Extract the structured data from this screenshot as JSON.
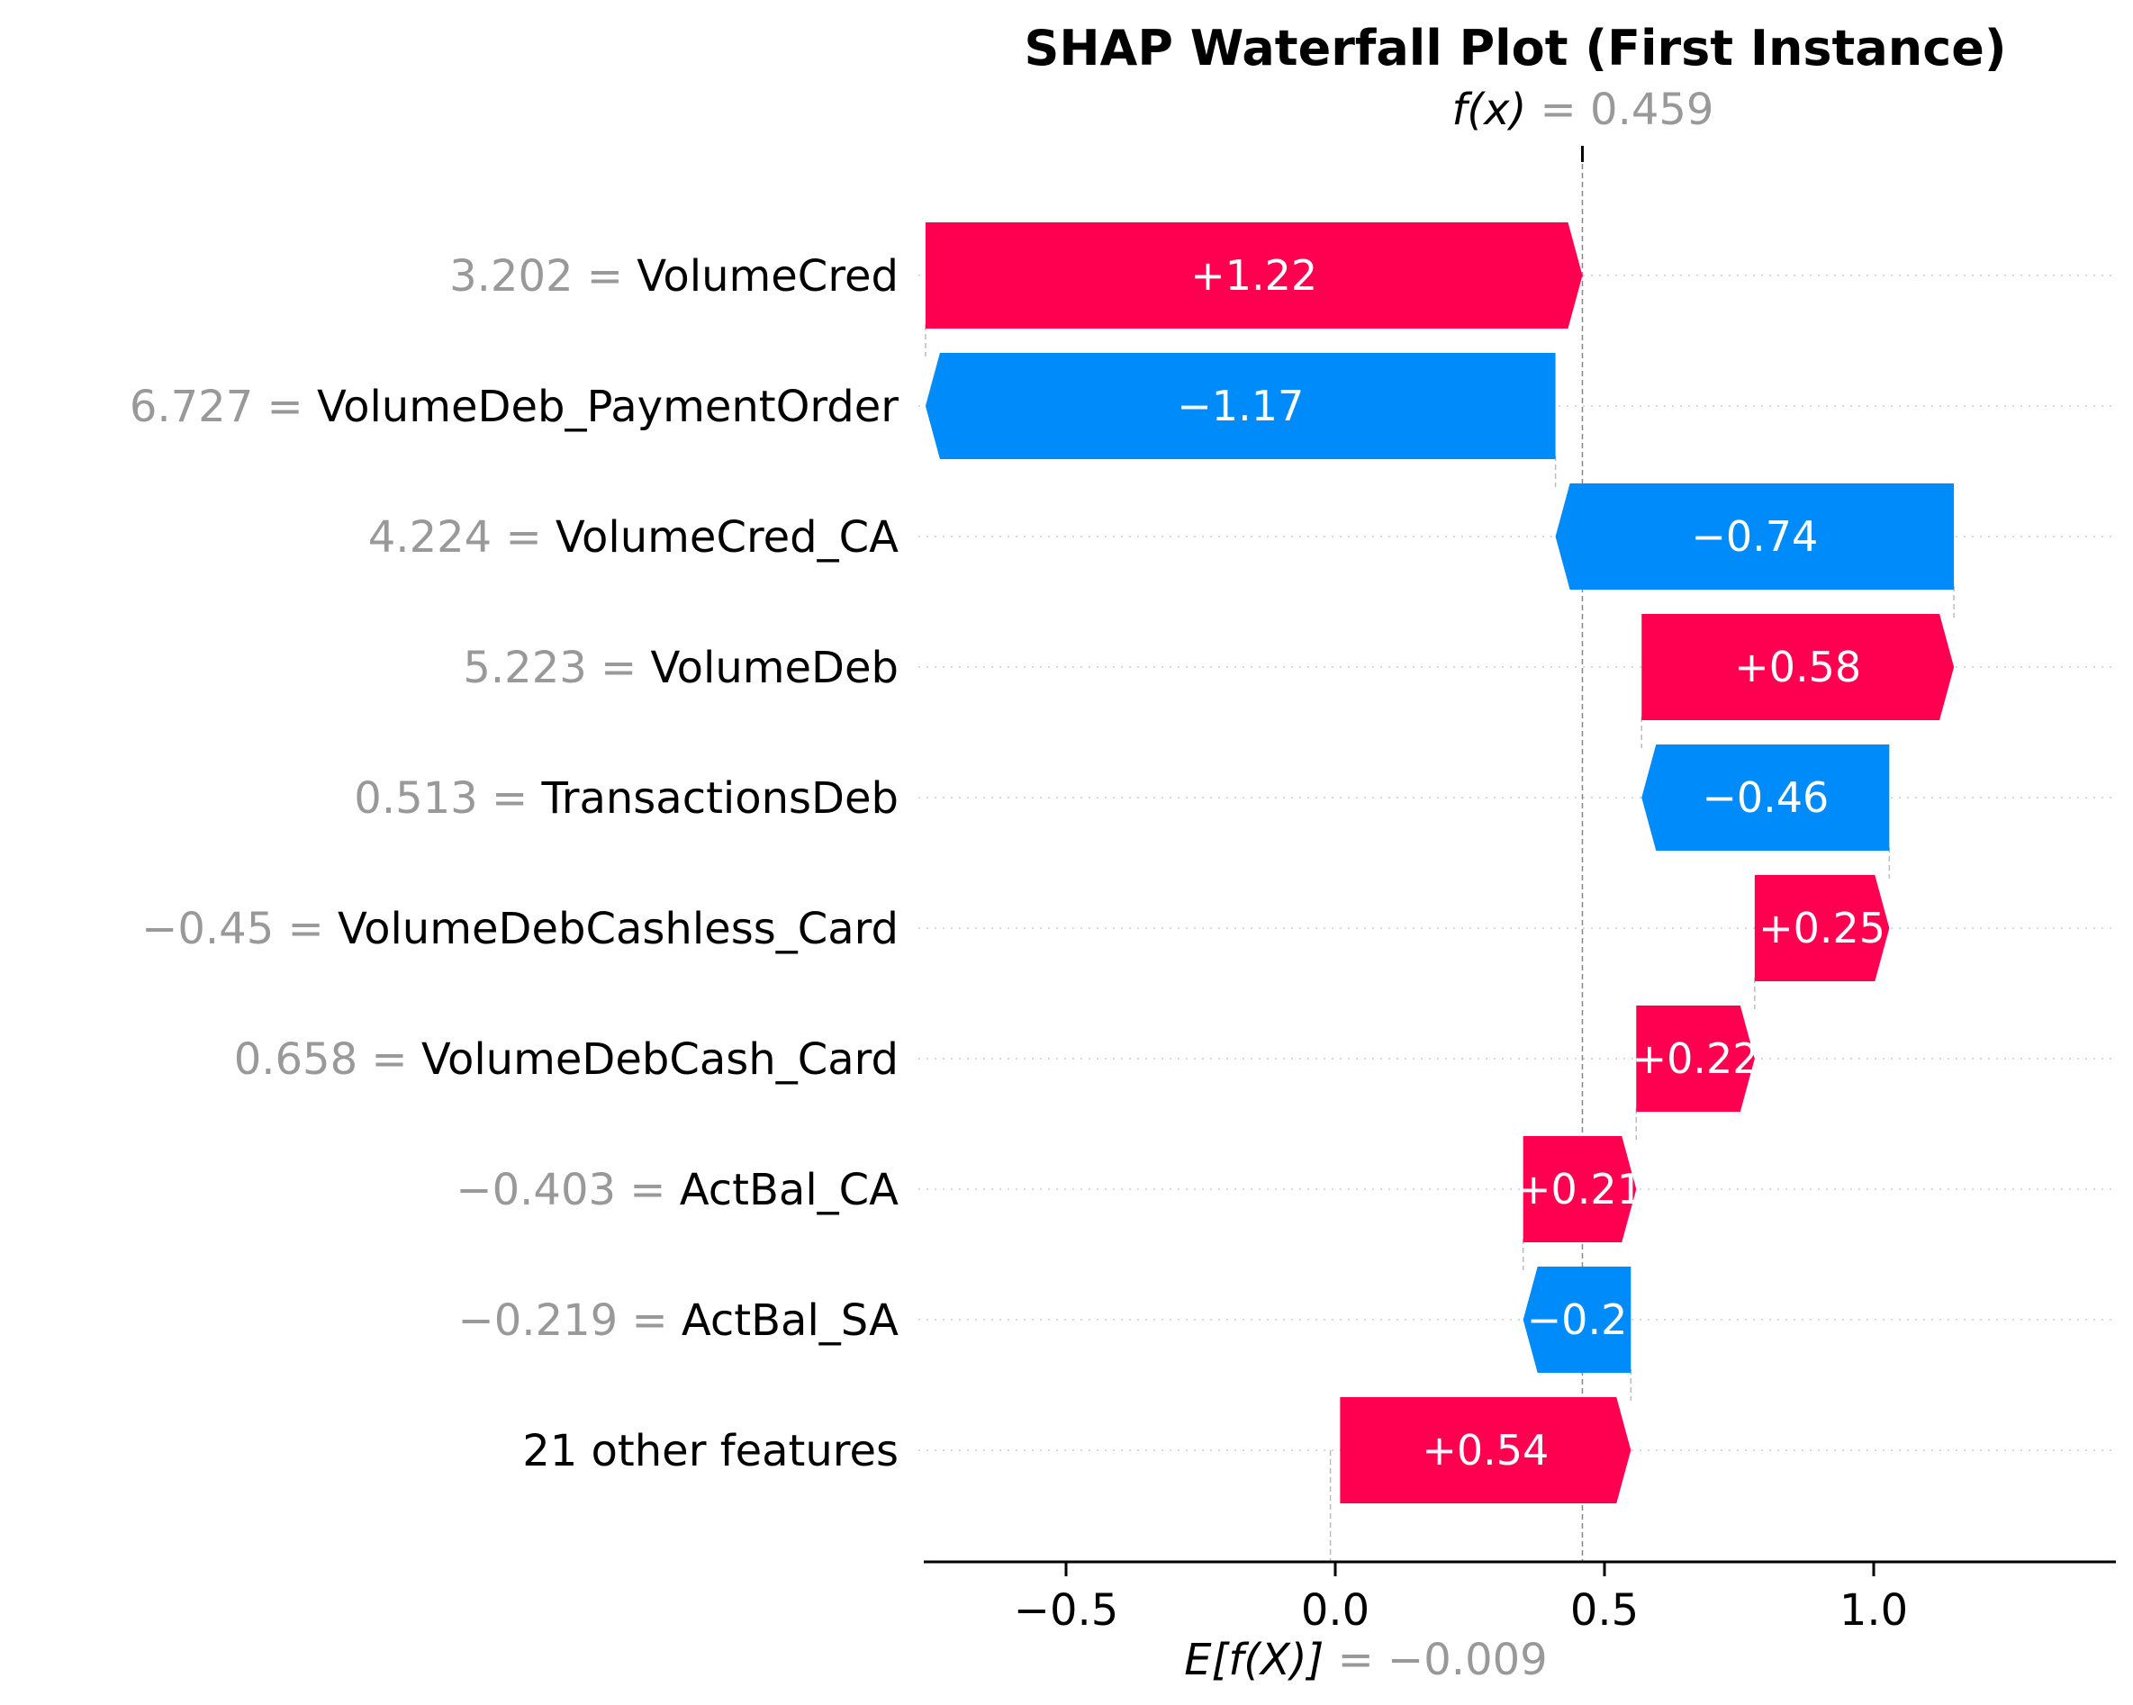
{
  "chart_data": {
    "type": "waterfall",
    "title": "SHAP Waterfall Plot (First Instance)",
    "fx_label": "f(x)",
    "fx_sep": " = ",
    "fx_value": "0.459",
    "base_label": "E[f(X)]",
    "base_sep": " = ",
    "base_value_text": "−0.009",
    "base_value": -0.009,
    "final_value": 0.459,
    "xlim": [
      -0.78,
      1.45
    ],
    "xticks": [
      {
        "value": -0.5,
        "label": "−0.5"
      },
      {
        "value": 0.0,
        "label": "0.0"
      },
      {
        "value": 0.5,
        "label": "0.5"
      },
      {
        "value": 1.0,
        "label": "1.0"
      }
    ],
    "features": [
      {
        "value_text": "3.202",
        "sep": " = ",
        "name": "VolumeCred",
        "shap": 1.22,
        "label": "+1.22"
      },
      {
        "value_text": "6.727",
        "sep": " = ",
        "name": "VolumeDeb_PaymentOrder",
        "shap": -1.17,
        "label": "−1.17"
      },
      {
        "value_text": "4.224",
        "sep": " = ",
        "name": "VolumeCred_CA",
        "shap": -0.74,
        "label": "−0.74"
      },
      {
        "value_text": "5.223",
        "sep": " = ",
        "name": "VolumeDeb",
        "shap": 0.58,
        "label": "+0.58"
      },
      {
        "value_text": "0.513",
        "sep": " = ",
        "name": "TransactionsDeb",
        "shap": -0.46,
        "label": "−0.46"
      },
      {
        "value_text": "−0.45",
        "sep": " = ",
        "name": "VolumeDebCashless_Card",
        "shap": 0.25,
        "label": "+0.25"
      },
      {
        "value_text": "0.658",
        "sep": " = ",
        "name": "VolumeDebCash_Card",
        "shap": 0.22,
        "label": "+0.22"
      },
      {
        "value_text": "−0.403",
        "sep": " = ",
        "name": "ActBal_CA",
        "shap": 0.21,
        "label": "+0.21"
      },
      {
        "value_text": "−0.219",
        "sep": " = ",
        "name": "ActBal_SA",
        "shap": -0.2,
        "label": "−0.2"
      },
      {
        "value_text": "",
        "sep": "",
        "name": "21 other features",
        "shap": 0.54,
        "label": "+0.54"
      }
    ],
    "colors": {
      "positive": "#ff0051",
      "negative": "#008bfb",
      "muted_text": "#999999",
      "guide": "#bbbbbb",
      "grid": "#cccccc",
      "axis": "#000000"
    }
  }
}
